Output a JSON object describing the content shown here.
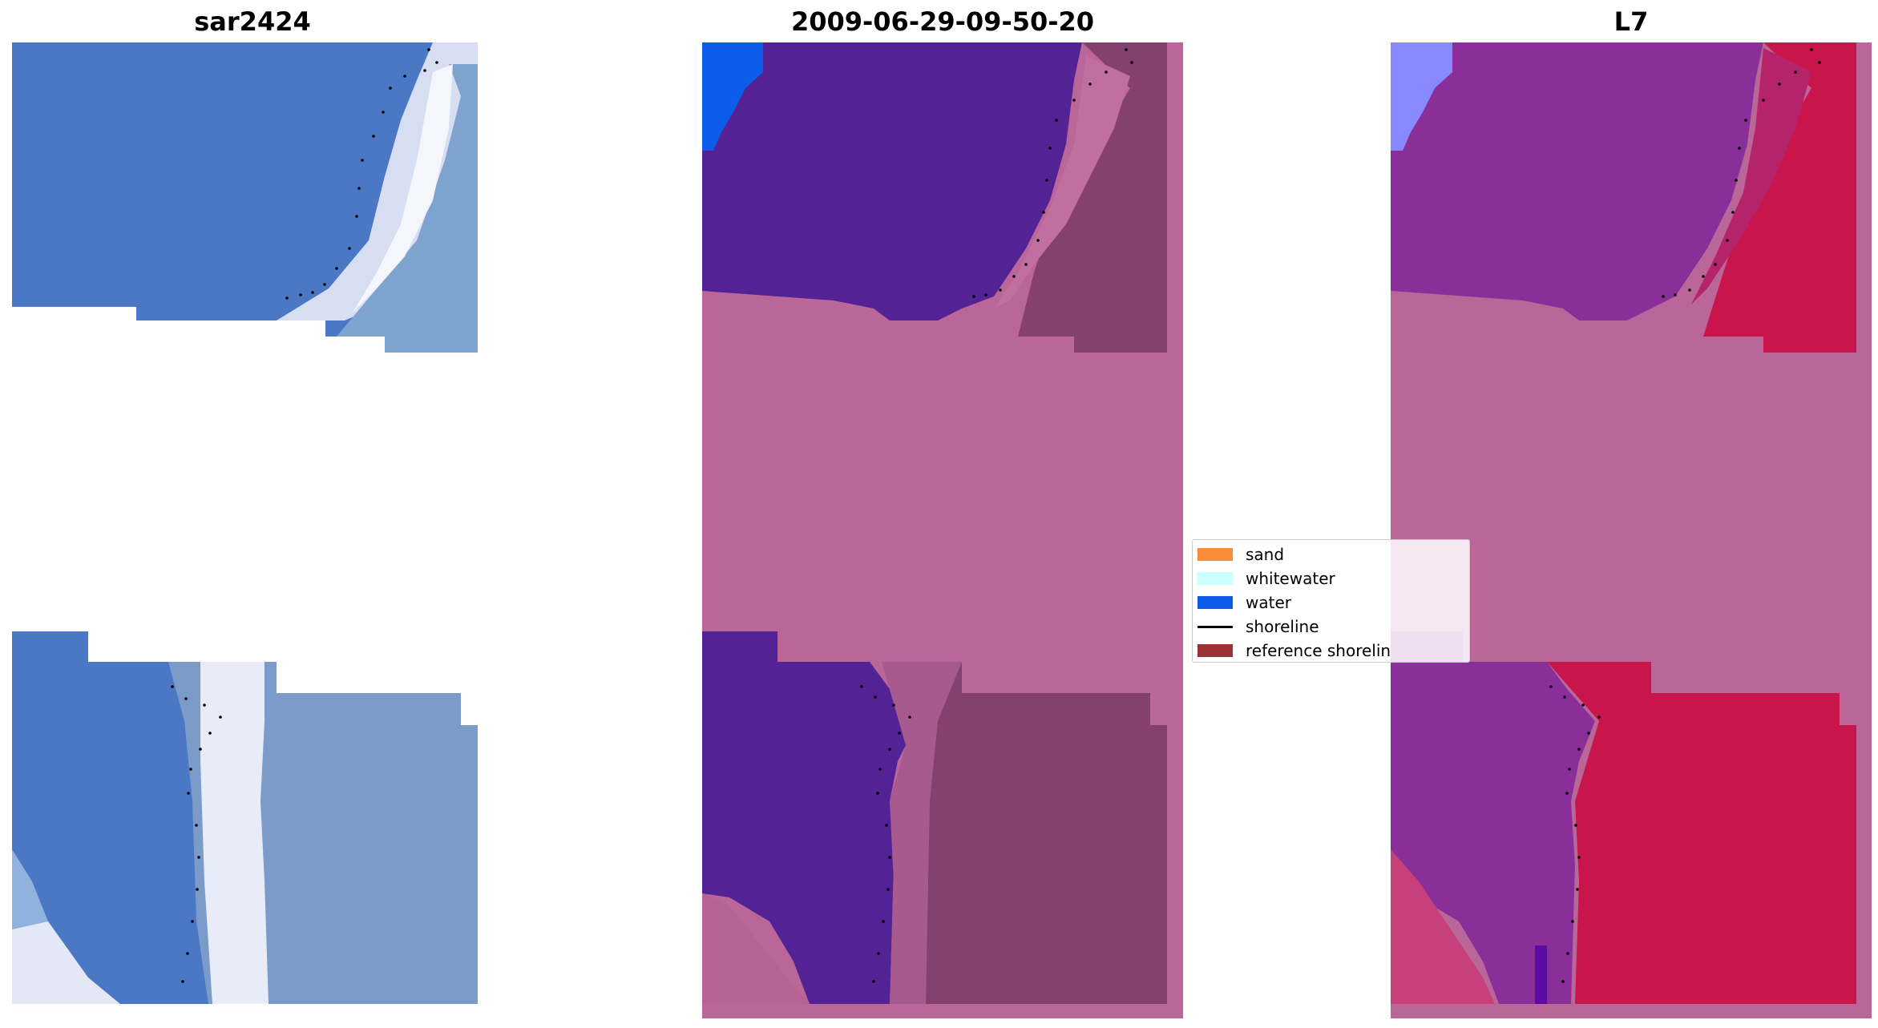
{
  "panels": [
    {
      "title": "sar2424"
    },
    {
      "title": "2009-06-29-09-50-20"
    },
    {
      "title": "L7"
    }
  ],
  "legend": {
    "items": [
      {
        "label": "sand",
        "color": "#f78c38"
      },
      {
        "label": "whitewater",
        "color": "#ccffff"
      },
      {
        "label": "water",
        "color": "#0b5ce8"
      },
      {
        "label": "shoreline",
        "color": "#000000"
      },
      {
        "label": "reference shorelin",
        "color": "#9b3035"
      }
    ]
  },
  "colors": {
    "sar_water": "#4a78c4",
    "sar_surf": "#e6eaf6",
    "class_water_bg": "#532396",
    "class_mask": "#bb6698",
    "class_land": "#84416f",
    "l7_water": "#8a2f9a",
    "l7_land": "#c8164c",
    "l7_mask": "#bb6698",
    "blue_corner": "#0b5ce8",
    "l7_corner": "#8888ff"
  }
}
